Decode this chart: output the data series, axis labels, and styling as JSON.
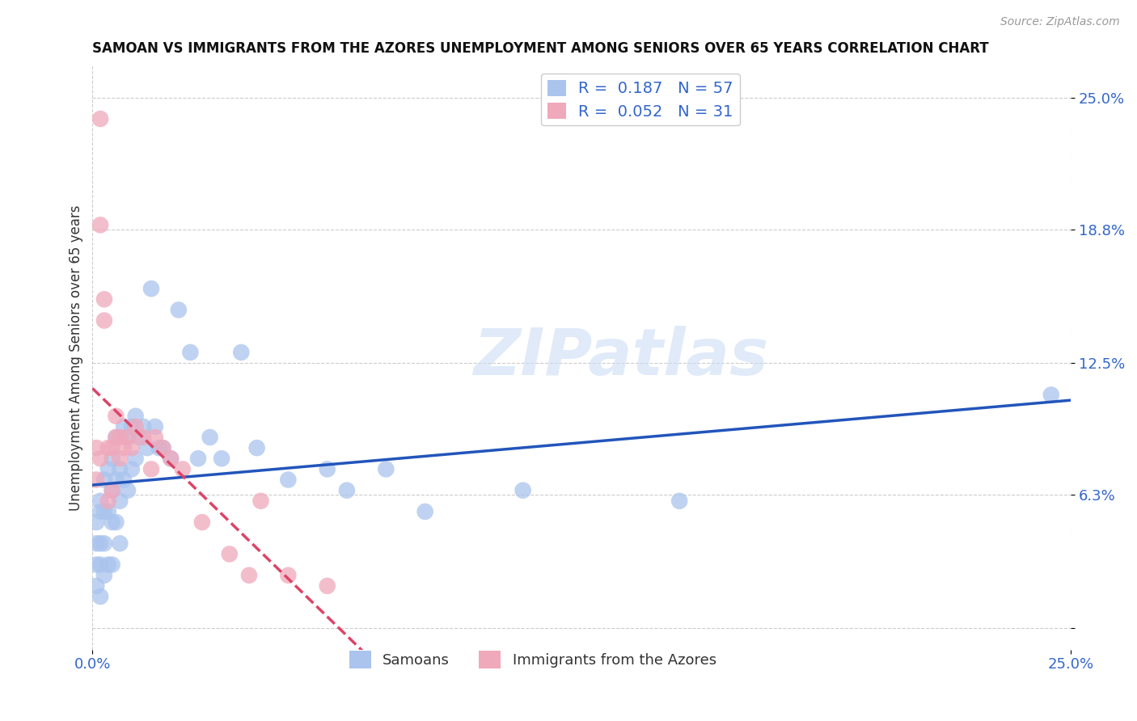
{
  "title": "SAMOAN VS IMMIGRANTS FROM THE AZORES UNEMPLOYMENT AMONG SENIORS OVER 65 YEARS CORRELATION CHART",
  "source": "Source: ZipAtlas.com",
  "ylabel": "Unemployment Among Seniors over 65 years",
  "y_tick_labels": [
    "",
    "6.3%",
    "12.5%",
    "18.8%",
    "25.0%"
  ],
  "y_tick_positions": [
    0.0,
    0.063,
    0.125,
    0.188,
    0.25
  ],
  "xlim": [
    0.0,
    0.25
  ],
  "ylim": [
    -0.01,
    0.265
  ],
  "watermark": "ZIPatlas",
  "legend_samoans_R": "0.187",
  "legend_samoans_N": "57",
  "legend_azores_R": "0.052",
  "legend_azores_N": "31",
  "samoans_color": "#aac4ed",
  "azores_color": "#f0a8bb",
  "samoans_line_color": "#2255bb",
  "azores_line_color": "#dd4466",
  "background_color": "#ffffff",
  "grid_color": "#cccccc",
  "samoans_x": [
    0.001,
    0.001,
    0.001,
    0.001,
    0.002,
    0.002,
    0.002,
    0.002,
    0.002,
    0.003,
    0.003,
    0.003,
    0.003,
    0.004,
    0.004,
    0.004,
    0.005,
    0.005,
    0.005,
    0.005,
    0.006,
    0.006,
    0.006,
    0.007,
    0.007,
    0.007,
    0.008,
    0.008,
    0.009,
    0.009,
    0.01,
    0.01,
    0.011,
    0.011,
    0.012,
    0.013,
    0.014,
    0.015,
    0.016,
    0.017,
    0.018,
    0.02,
    0.022,
    0.025,
    0.027,
    0.03,
    0.033,
    0.038,
    0.042,
    0.05,
    0.06,
    0.065,
    0.075,
    0.085,
    0.11,
    0.15,
    0.245
  ],
  "samoans_y": [
    0.05,
    0.04,
    0.03,
    0.02,
    0.06,
    0.055,
    0.04,
    0.03,
    0.015,
    0.07,
    0.055,
    0.04,
    0.025,
    0.075,
    0.055,
    0.03,
    0.08,
    0.065,
    0.05,
    0.03,
    0.09,
    0.07,
    0.05,
    0.075,
    0.06,
    0.04,
    0.095,
    0.07,
    0.09,
    0.065,
    0.095,
    0.075,
    0.1,
    0.08,
    0.09,
    0.095,
    0.085,
    0.16,
    0.095,
    0.085,
    0.085,
    0.08,
    0.15,
    0.13,
    0.08,
    0.09,
    0.08,
    0.13,
    0.085,
    0.07,
    0.075,
    0.065,
    0.075,
    0.055,
    0.065,
    0.06,
    0.11
  ],
  "azores_x": [
    0.001,
    0.001,
    0.002,
    0.002,
    0.002,
    0.003,
    0.003,
    0.004,
    0.004,
    0.005,
    0.005,
    0.006,
    0.006,
    0.007,
    0.007,
    0.008,
    0.009,
    0.01,
    0.011,
    0.013,
    0.015,
    0.016,
    0.018,
    0.02,
    0.023,
    0.028,
    0.035,
    0.04,
    0.043,
    0.05,
    0.06
  ],
  "azores_y": [
    0.085,
    0.07,
    0.24,
    0.19,
    0.08,
    0.155,
    0.145,
    0.085,
    0.06,
    0.085,
    0.065,
    0.1,
    0.09,
    0.09,
    0.08,
    0.085,
    0.09,
    0.085,
    0.095,
    0.09,
    0.075,
    0.09,
    0.085,
    0.08,
    0.075,
    0.05,
    0.035,
    0.025,
    0.06,
    0.025,
    0.02
  ]
}
